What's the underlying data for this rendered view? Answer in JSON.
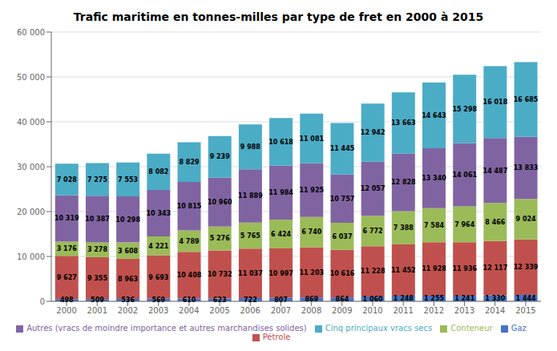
{
  "chart_data": {
    "type": "bar",
    "title": "Trafic maritime en tonnes-milles par type de fret en 2000 à 2015",
    "categories": [
      "2000",
      "2001",
      "2002",
      "2003",
      "2004",
      "2005",
      "2006",
      "2007",
      "2008",
      "2009",
      "2010",
      "2011",
      "2012",
      "2013",
      "2014",
      "2015"
    ],
    "stacked": true,
    "data_labels": true,
    "grid": true,
    "legend": "bottom",
    "ylim": [
      0,
      60000
    ],
    "yticks": [
      0,
      {
        "value": 10000,
        "label": "10 000"
      },
      {
        "value": 20000,
        "label": "20 000"
      },
      {
        "value": 30000,
        "label": "30 000"
      },
      {
        "value": 40000,
        "label": "40 000"
      },
      {
        "value": 50000,
        "label": "50 000"
      },
      {
        "value": 60000,
        "label": "60 000"
      }
    ],
    "series": [
      {
        "name": "Gaz",
        "color": "#4472C4",
        "values": [
          498,
          509,
          536,
          569,
          610,
          623,
          722,
          807,
          869,
          864,
          1060,
          1248,
          1255,
          1241,
          1330,
          1444
        ],
        "value_labels": [
          "498",
          "509",
          "536",
          "569",
          "610",
          "623",
          "722",
          "807",
          "869",
          "864",
          "1 060",
          "1 248",
          "1 255",
          "1 241",
          "1 330",
          "1 444"
        ]
      },
      {
        "name": "Pétrole",
        "color": "#C0504D",
        "values": [
          9627,
          9355,
          8963,
          9693,
          10408,
          10732,
          11037,
          10997,
          11203,
          10616,
          11228,
          11452,
          11928,
          11936,
          12117,
          12339
        ],
        "value_labels": [
          "9 627",
          "9 355",
          "8 963",
          "9 693",
          "10 408",
          "10 732",
          "11 037",
          "10 997",
          "11 203",
          "10 616",
          "11 228",
          "11 452",
          "11 928",
          "11 936",
          "12 117",
          "12 339"
        ]
      },
      {
        "name": "Conteneur",
        "color": "#9BBB59",
        "values": [
          3176,
          3278,
          3608,
          4221,
          4789,
          5276,
          5765,
          6424,
          6740,
          6037,
          6772,
          7388,
          7584,
          7964,
          8466,
          9024
        ],
        "value_labels": [
          "3 176",
          "3 278",
          "3 608",
          "4 221",
          "4 789",
          "5 276",
          "5 765",
          "6 424",
          "6 740",
          "6 037",
          "6 772",
          "7 388",
          "7 584",
          "7 964",
          "8 466",
          "9 024"
        ]
      },
      {
        "name": "Autres (vracs de moindre importance et autres marchandises solides)",
        "color": "#8064A2",
        "values": [
          10319,
          10387,
          10298,
          10343,
          10815,
          10960,
          11889,
          11984,
          11925,
          10757,
          12057,
          12828,
          13340,
          14061,
          14487,
          13833
        ],
        "value_labels": [
          "10 319",
          "10 387",
          "10 298",
          "10 343",
          "10 815",
          "10 960",
          "11 889",
          "11 984",
          "11 925",
          "10 757",
          "12 057",
          "12 828",
          "13 340",
          "14 061",
          "14 487",
          "13 833"
        ]
      },
      {
        "name": "Cinq principaux vracs secs",
        "color": "#4BACC6",
        "values": [
          7028,
          7275,
          7553,
          8082,
          8829,
          9239,
          9988,
          10618,
          11081,
          11445,
          12942,
          13663,
          14643,
          15298,
          16018,
          16685
        ],
        "value_labels": [
          "7 028",
          "7 275",
          "7 553",
          "8 082",
          "8 829",
          "9 239",
          "9 988",
          "10 618",
          "11 081",
          "11 445",
          "12 942",
          "13 663",
          "14 643",
          "15 298",
          "16 018",
          "16 685"
        ]
      }
    ]
  }
}
